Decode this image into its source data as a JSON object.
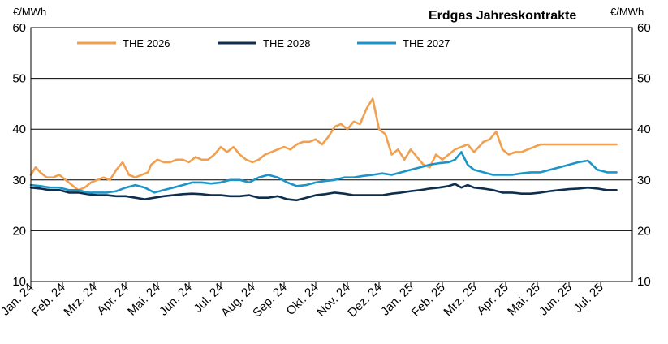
{
  "chart_data": {
    "type": "line",
    "title": "Erdgas Jahreskontrakte",
    "ylabel_left": "€/MWh",
    "ylabel_right": "€/MWh",
    "ylim": [
      10,
      60
    ],
    "yticks": [
      10,
      20,
      30,
      40,
      50,
      60
    ],
    "grid": "horizontal",
    "legend_position": "top",
    "x_range": [
      0,
      19
    ],
    "xtick_labels": [
      "Jan. 24",
      "Feb. 24",
      "Mrz. 24",
      "Apr. 24",
      "Mai. 24",
      "Jun. 24",
      "Jul. 24",
      "Aug. 24",
      "Sep. 24",
      "Okt. 24",
      "Nov. 24",
      "Dez. 24",
      "Jan. 25",
      "Feb. 25",
      "Mrz. 25",
      "Apr. 25",
      "Mai. 25",
      "Jun. 25",
      "Jul. 25"
    ],
    "series": [
      {
        "name": "THE 2026",
        "color": "#f0a050",
        "x": [
          0,
          0.15,
          0.3,
          0.5,
          0.7,
          0.9,
          1.1,
          1.3,
          1.5,
          1.7,
          1.9,
          2.1,
          2.3,
          2.5,
          2.7,
          2.9,
          3.1,
          3.3,
          3.5,
          3.7,
          3.8,
          4.0,
          4.2,
          4.4,
          4.6,
          4.8,
          5.0,
          5.2,
          5.4,
          5.6,
          5.8,
          6.0,
          6.2,
          6.4,
          6.6,
          6.8,
          7.0,
          7.2,
          7.4,
          7.6,
          7.8,
          8.0,
          8.2,
          8.4,
          8.6,
          8.8,
          9.0,
          9.2,
          9.4,
          9.6,
          9.8,
          10.0,
          10.2,
          10.4,
          10.6,
          10.8,
          11.0,
          11.2,
          11.4,
          11.6,
          11.8,
          12.0,
          12.2,
          12.4,
          12.6,
          12.8,
          13.0,
          13.2,
          13.4,
          13.6,
          13.8,
          14.0,
          14.15,
          14.3,
          14.5,
          14.7,
          14.9,
          15.1,
          15.3,
          15.5,
          15.7,
          15.9,
          16.1,
          16.3,
          16.5,
          16.7,
          16.9,
          17.1,
          17.3,
          17.5,
          17.7,
          17.8,
          17.9,
          18.1,
          18.3,
          18.5
        ],
        "values": [
          31,
          32.5,
          31.5,
          30.5,
          30.5,
          31,
          30,
          29,
          28,
          28.5,
          29.5,
          30,
          30.5,
          30,
          32,
          33.5,
          31,
          30.5,
          31,
          31.5,
          33,
          34,
          33.5,
          33.5,
          34,
          34,
          33.5,
          34.5,
          34,
          34,
          35,
          36.5,
          35.5,
          36.5,
          35,
          34,
          33.5,
          34,
          35,
          35.5,
          36,
          36.5,
          36,
          37,
          37.5,
          37.5,
          38,
          37,
          38.5,
          40.5,
          41,
          40,
          41.5,
          41,
          44,
          46,
          40,
          39,
          35,
          36,
          34,
          36,
          34.5,
          33,
          32.5,
          35,
          34,
          35,
          36,
          36.5,
          37,
          35.5,
          36.5,
          37.5,
          38,
          39.5,
          36,
          35,
          35.5,
          35.5,
          36,
          36.5,
          37,
          37,
          37,
          37,
          37,
          37,
          37,
          37,
          37,
          37,
          37,
          37,
          37,
          37
        ],
        "truncate": true
      },
      {
        "name": "THE 2028",
        "color": "#0d2e4d",
        "x": [
          0,
          0.3,
          0.6,
          0.9,
          1.2,
          1.5,
          1.8,
          2.1,
          2.4,
          2.7,
          3.0,
          3.3,
          3.6,
          3.9,
          4.2,
          4.5,
          4.8,
          5.1,
          5.4,
          5.7,
          6.0,
          6.3,
          6.6,
          6.9,
          7.2,
          7.5,
          7.8,
          8.1,
          8.4,
          8.7,
          9.0,
          9.3,
          9.6,
          9.9,
          10.2,
          10.5,
          10.8,
          11.1,
          11.4,
          11.7,
          12.0,
          12.3,
          12.6,
          12.9,
          13.2,
          13.4,
          13.6,
          13.8,
          14.0,
          14.3,
          14.6,
          14.9,
          15.2,
          15.5,
          15.8,
          16.1,
          16.4,
          16.7,
          17.0,
          17.3,
          17.6,
          17.9,
          18.2,
          18.5
        ],
        "values": [
          28.5,
          28.3,
          28,
          28,
          27.5,
          27.5,
          27.2,
          27,
          27,
          26.8,
          26.8,
          26.5,
          26.2,
          26.5,
          26.8,
          27,
          27.2,
          27.3,
          27.2,
          27,
          27,
          26.8,
          26.8,
          27,
          26.5,
          26.5,
          26.8,
          26.2,
          26,
          26.5,
          27,
          27.2,
          27.5,
          27.3,
          27,
          27,
          27,
          27,
          27.3,
          27.5,
          27.8,
          28,
          28.3,
          28.5,
          28.8,
          29.2,
          28.5,
          29,
          28.5,
          28.3,
          28,
          27.5,
          27.5,
          27.3,
          27.3,
          27.5,
          27.8,
          28,
          28.2,
          28.3,
          28.5,
          28.3,
          28,
          28
        ]
      },
      {
        "name": "THE 2027",
        "color": "#1c94c8",
        "x": [
          0,
          0.3,
          0.6,
          0.9,
          1.2,
          1.5,
          1.8,
          2.1,
          2.4,
          2.7,
          3.0,
          3.3,
          3.6,
          3.9,
          4.2,
          4.5,
          4.8,
          5.1,
          5.4,
          5.7,
          6.0,
          6.3,
          6.6,
          6.9,
          7.2,
          7.5,
          7.8,
          8.1,
          8.4,
          8.7,
          9.0,
          9.3,
          9.6,
          9.9,
          10.2,
          10.5,
          10.8,
          11.1,
          11.4,
          11.7,
          12.0,
          12.3,
          12.6,
          12.9,
          13.2,
          13.4,
          13.6,
          13.8,
          14.0,
          14.3,
          14.6,
          14.9,
          15.2,
          15.5,
          15.8,
          16.1,
          16.4,
          16.7,
          17.0,
          17.3,
          17.6,
          17.9,
          18.2,
          18.5
        ],
        "values": [
          29,
          28.8,
          28.5,
          28.5,
          28,
          28,
          27.5,
          27.5,
          27.5,
          27.8,
          28.5,
          29,
          28.5,
          27.5,
          28,
          28.5,
          29,
          29.5,
          29.5,
          29.3,
          29.5,
          30,
          30,
          29.5,
          30.5,
          31,
          30.5,
          29.5,
          28.8,
          29,
          29.5,
          29.8,
          30,
          30.5,
          30.5,
          30.8,
          31,
          31.3,
          31,
          31.5,
          32,
          32.5,
          33,
          33.3,
          33.5,
          34,
          35.5,
          33,
          32,
          31.5,
          31,
          31,
          31,
          31.3,
          31.5,
          31.5,
          32,
          32.5,
          33,
          33.5,
          33.8,
          32,
          31.5,
          31.5
        ]
      }
    ]
  }
}
